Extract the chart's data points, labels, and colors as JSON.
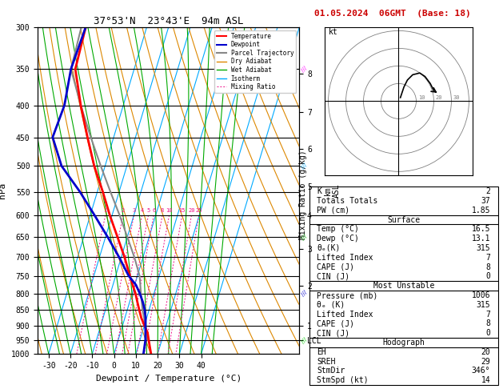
{
  "title_left": "37°53'N  23°43'E  94m ASL",
  "title_right": "01.05.2024  06GMT  (Base: 18)",
  "xlabel": "Dewpoint / Temperature (°C)",
  "ylabel_left": "hPa",
  "x_min": -35,
  "x_max": 40,
  "pressure_levels": [
    300,
    350,
    400,
    450,
    500,
    550,
    600,
    650,
    700,
    750,
    800,
    850,
    900,
    950,
    1000
  ],
  "pressure_labels": [
    "300",
    "350",
    "400",
    "450",
    "500",
    "550",
    "600",
    "650",
    "700",
    "750",
    "800",
    "850",
    "900",
    "950",
    "1000"
  ],
  "km_labels": [
    "8",
    "7",
    "6",
    "5",
    "4",
    "3",
    "2",
    "1",
    "LCL"
  ],
  "km_pressures": [
    356,
    410,
    470,
    540,
    600,
    680,
    778,
    900,
    950
  ],
  "mixing_ratio_values": [
    1,
    2,
    3,
    4,
    5,
    6,
    8,
    10,
    15,
    20,
    25
  ],
  "temp_color": "#ff0000",
  "dewp_color": "#0000cc",
  "parcel_color": "#888888",
  "dry_adiabat_color": "#dd8800",
  "wet_adiabat_color": "#00aa00",
  "isotherm_color": "#00aaff",
  "mixing_ratio_color": "#ee1188",
  "skew_factor": 45.0,
  "temperature_profile": {
    "pressure": [
      1000,
      975,
      950,
      925,
      900,
      875,
      850,
      825,
      800,
      775,
      750,
      700,
      650,
      600,
      550,
      500,
      450,
      400,
      350,
      300
    ],
    "temp": [
      17.0,
      15.5,
      14.0,
      12.5,
      10.0,
      7.5,
      5.5,
      3.5,
      1.5,
      -1.0,
      -3.5,
      -8.5,
      -14.5,
      -21.0,
      -27.5,
      -35.0,
      -42.0,
      -49.5,
      -57.0,
      -58.0
    ]
  },
  "dewpoint_profile": {
    "pressure": [
      1000,
      975,
      950,
      925,
      900,
      875,
      850,
      825,
      800,
      775,
      750,
      700,
      650,
      600,
      550,
      500,
      450,
      400,
      350,
      300
    ],
    "temp": [
      13.5,
      13.0,
      12.5,
      11.5,
      10.5,
      9.5,
      8.0,
      6.0,
      3.5,
      0.5,
      -4.0,
      -11.0,
      -19.0,
      -28.0,
      -38.0,
      -50.0,
      -58.0,
      -57.0,
      -59.0,
      -58.0
    ]
  },
  "parcel_profile": {
    "pressure": [
      950,
      900,
      850,
      800,
      750,
      700,
      650,
      600,
      550,
      500,
      450,
      400,
      350,
      300
    ],
    "temp": [
      13.5,
      10.5,
      7.0,
      4.0,
      1.0,
      -4.0,
      -10.0,
      -16.5,
      -24.0,
      -32.0,
      -40.5,
      -49.5,
      -59.0,
      -60.0
    ]
  },
  "table_data": {
    "K": "2",
    "Totals Totals": "37",
    "PW (cm)": "1.85",
    "surface_temp": "16.5",
    "surface_dewp": "13.1",
    "surface_theta_e": "315",
    "surface_lifted_index": "7",
    "surface_cape": "8",
    "surface_cin": "0",
    "mu_pressure": "1006",
    "mu_theta_e": "315",
    "mu_lifted_index": "7",
    "mu_cape": "8",
    "mu_cin": "0",
    "EH": "20",
    "SREH": "29",
    "StmDir": "346°",
    "StmSpd": "14"
  },
  "hodo_rings": [
    10,
    20,
    30,
    40
  ],
  "background_color": "#ffffff"
}
